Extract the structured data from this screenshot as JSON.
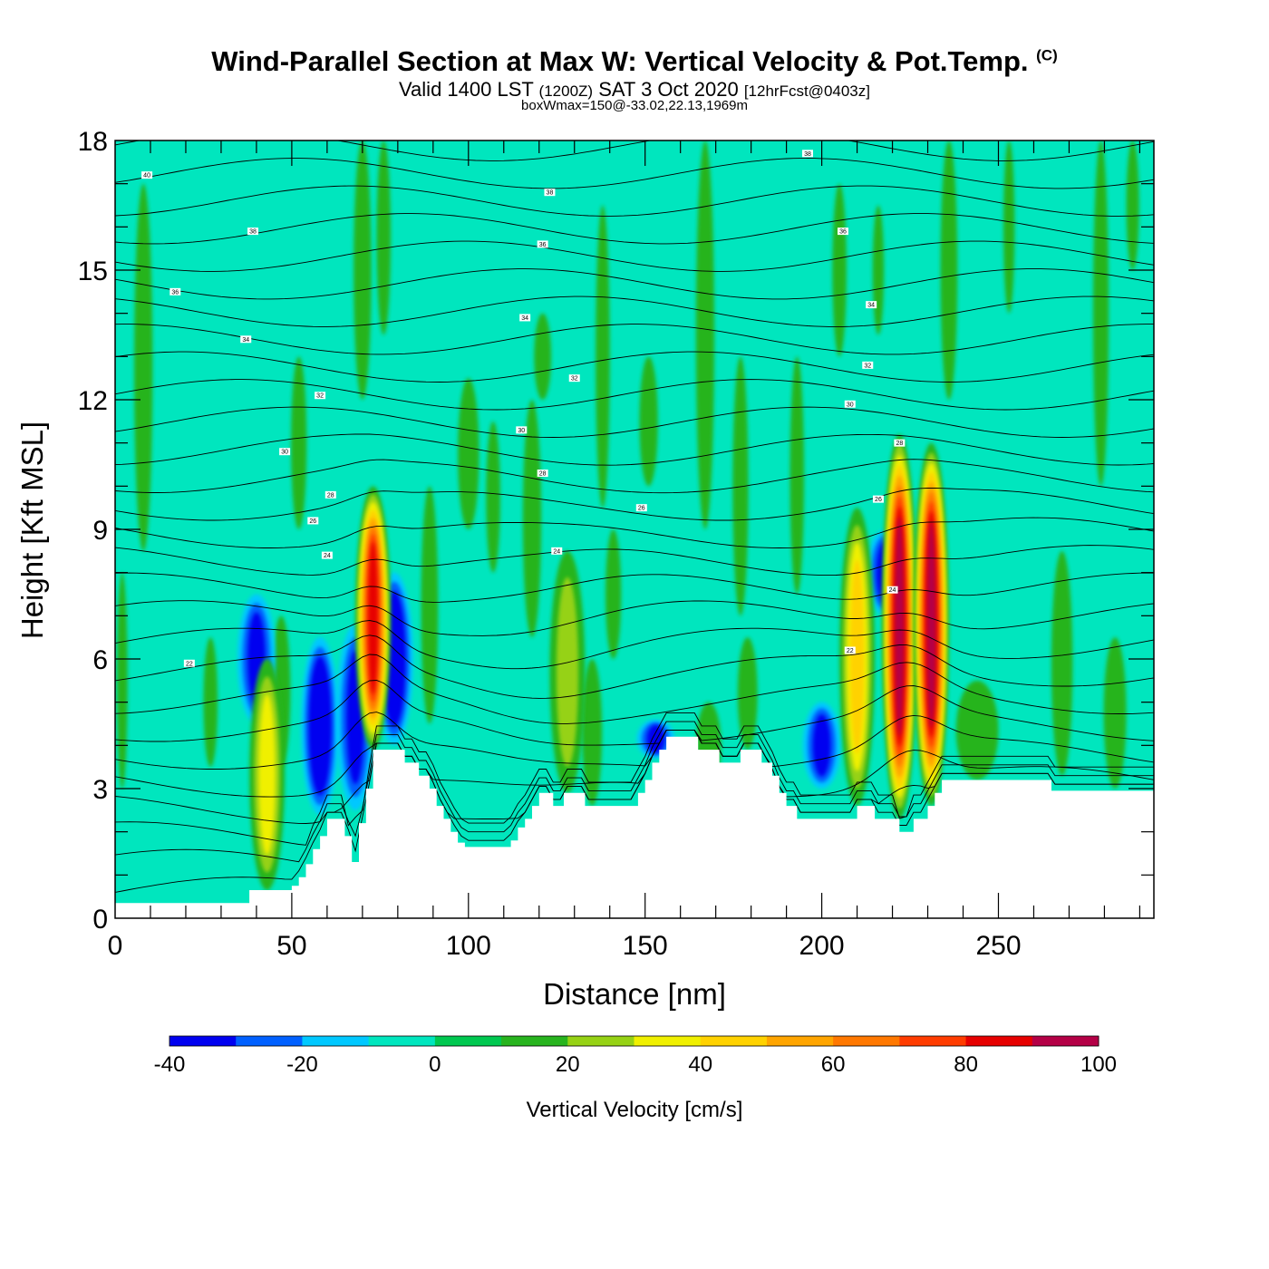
{
  "header": {
    "title": "Wind-Parallel Section at Max W: Vertical Velocity & Pot.Temp.",
    "copyright": "(C)",
    "valid_main": "Valid 1400 LST",
    "valid_zulu": "(1200Z)",
    "valid_date": "SAT 3 Oct 2020",
    "forecast": "[12hrFcst@0403z]",
    "box_info": "boxWmax=150@-33.02,22.13,1969m"
  },
  "chart_data": {
    "type": "heatmap",
    "xlabel": "Distance [nm]",
    "ylabel": "Height [Kft MSL]",
    "xlim": [
      0,
      294
    ],
    "ylim": [
      0,
      18
    ],
    "x_ticks": [
      0,
      50,
      100,
      150,
      200,
      250
    ],
    "y_ticks": [
      0,
      3,
      6,
      9,
      12,
      15,
      18
    ],
    "colorbar": {
      "label": "Vertical Velocity [cm/s]",
      "bounds": [
        -40,
        -30,
        -20,
        -10,
        0,
        10,
        20,
        30,
        40,
        50,
        60,
        70,
        80,
        90,
        100
      ],
      "colors": [
        "#0000f0",
        "#0060ff",
        "#00c8ff",
        "#00e6be",
        "#00c850",
        "#28b41e",
        "#96d214",
        "#f0f000",
        "#ffd200",
        "#ffa500",
        "#ff7800",
        "#ff3c00",
        "#e60000",
        "#b40046"
      ],
      "tick_labels": [
        "-40",
        "-20",
        "0",
        "20",
        "40",
        "60",
        "80",
        "100"
      ]
    },
    "terrain_kft": [
      [
        0,
        0.35
      ],
      [
        38,
        0.35
      ],
      [
        38,
        0.65
      ],
      [
        50,
        0.65
      ],
      [
        50,
        0.75
      ],
      [
        52,
        0.75
      ],
      [
        52,
        0.95
      ],
      [
        54,
        0.95
      ],
      [
        54,
        1.25
      ],
      [
        56,
        1.25
      ],
      [
        56,
        1.6
      ],
      [
        58,
        1.6
      ],
      [
        58,
        1.9
      ],
      [
        60,
        1.9
      ],
      [
        60,
        2.3
      ],
      [
        65,
        2.3
      ],
      [
        65,
        1.9
      ],
      [
        67,
        1.9
      ],
      [
        67,
        1.3
      ],
      [
        69,
        1.3
      ],
      [
        69,
        2.2
      ],
      [
        71,
        2.2
      ],
      [
        71,
        3.0
      ],
      [
        73,
        3.0
      ],
      [
        73,
        3.9
      ],
      [
        82,
        3.9
      ],
      [
        82,
        3.6
      ],
      [
        86,
        3.6
      ],
      [
        86,
        3.3
      ],
      [
        89,
        3.3
      ],
      [
        89,
        3.0
      ],
      [
        91,
        3.0
      ],
      [
        91,
        2.6
      ],
      [
        93,
        2.6
      ],
      [
        93,
        2.3
      ],
      [
        95,
        2.3
      ],
      [
        95,
        2.0
      ],
      [
        97,
        2.0
      ],
      [
        97,
        1.75
      ],
      [
        99,
        1.75
      ],
      [
        99,
        1.65
      ],
      [
        112,
        1.65
      ],
      [
        112,
        1.8
      ],
      [
        114,
        1.8
      ],
      [
        114,
        2.1
      ],
      [
        116,
        2.1
      ],
      [
        116,
        2.3
      ],
      [
        118,
        2.3
      ],
      [
        118,
        2.6
      ],
      [
        120,
        2.6
      ],
      [
        120,
        2.9
      ],
      [
        124,
        2.9
      ],
      [
        124,
        2.6
      ],
      [
        127,
        2.6
      ],
      [
        127,
        2.9
      ],
      [
        133,
        2.9
      ],
      [
        133,
        2.6
      ],
      [
        148,
        2.6
      ],
      [
        148,
        2.9
      ],
      [
        150,
        2.9
      ],
      [
        150,
        3.2
      ],
      [
        152,
        3.2
      ],
      [
        152,
        3.6
      ],
      [
        154,
        3.6
      ],
      [
        154,
        3.9
      ],
      [
        156,
        3.9
      ],
      [
        156,
        4.2
      ],
      [
        165,
        4.2
      ],
      [
        165,
        3.9
      ],
      [
        171,
        3.9
      ],
      [
        171,
        3.6
      ],
      [
        177,
        3.6
      ],
      [
        177,
        3.9
      ],
      [
        183,
        3.9
      ],
      [
        183,
        3.6
      ],
      [
        186,
        3.6
      ],
      [
        186,
        3.3
      ],
      [
        188,
        3.3
      ],
      [
        188,
        2.9
      ],
      [
        190,
        2.9
      ],
      [
        190,
        2.6
      ],
      [
        193,
        2.6
      ],
      [
        193,
        2.3
      ],
      [
        210,
        2.3
      ],
      [
        210,
        2.6
      ],
      [
        215,
        2.6
      ],
      [
        215,
        2.3
      ],
      [
        222,
        2.3
      ],
      [
        222,
        2.0
      ],
      [
        226,
        2.0
      ],
      [
        226,
        2.3
      ],
      [
        230,
        2.3
      ],
      [
        230,
        2.6
      ],
      [
        232,
        2.6
      ],
      [
        232,
        2.9
      ],
      [
        234,
        2.9
      ],
      [
        234,
        3.2
      ],
      [
        265,
        3.2
      ],
      [
        265,
        2.95
      ],
      [
        294,
        2.95
      ]
    ],
    "updrafts": [
      {
        "x": 73,
        "z_bottom": 3.9,
        "z_top": 10.0,
        "w_max": 80
      },
      {
        "x": 210,
        "z_bottom": 2.6,
        "z_top": 9.5,
        "w_max": 40
      },
      {
        "x": 222,
        "z_bottom": 2.3,
        "z_top": 11.2,
        "w_max": 90
      },
      {
        "x": 231,
        "z_bottom": 2.6,
        "z_top": 11.0,
        "w_max": 90
      },
      {
        "x": 43,
        "z_bottom": 0.65,
        "z_top": 6.0,
        "w_max": 30
      },
      {
        "x": 128,
        "z_bottom": 2.9,
        "z_top": 8.5,
        "w_max": 20
      }
    ],
    "downdrafts": [
      {
        "x": 79,
        "z_bottom": 4.0,
        "z_top": 8.0,
        "w_min": -40
      },
      {
        "x": 58,
        "z_bottom": 2.4,
        "z_top": 6.5,
        "w_min": -40
      },
      {
        "x": 40,
        "z_bottom": 4.5,
        "z_top": 7.5,
        "w_min": -30
      },
      {
        "x": 218,
        "z_bottom": 7.0,
        "z_top": 9.0,
        "w_min": -30
      },
      {
        "x": 68,
        "z_bottom": 2.5,
        "z_top": 6.8,
        "w_min": -30
      },
      {
        "x": 153,
        "z_bottom": 3.7,
        "z_top": 4.6,
        "w_min": -30
      },
      {
        "x": 200,
        "z_bottom": 3.0,
        "z_top": 5.0,
        "w_min": -30
      }
    ],
    "isentrope_labels": [
      {
        "x": 9,
        "z": 17.2,
        "text": "40"
      },
      {
        "x": 39,
        "z": 15.9,
        "text": "38"
      },
      {
        "x": 17,
        "z": 14.5,
        "text": "36"
      },
      {
        "x": 37,
        "z": 13.4,
        "text": "34"
      },
      {
        "x": 58,
        "z": 12.1,
        "text": "32"
      },
      {
        "x": 48,
        "z": 10.8,
        "text": "30"
      },
      {
        "x": 61,
        "z": 9.8,
        "text": "28"
      },
      {
        "x": 56,
        "z": 9.2,
        "text": "26"
      },
      {
        "x": 60,
        "z": 8.4,
        "text": "24"
      },
      {
        "x": 21,
        "z": 5.9,
        "text": "22"
      },
      {
        "x": 123,
        "z": 16.8,
        "text": "38"
      },
      {
        "x": 121,
        "z": 15.6,
        "text": "36"
      },
      {
        "x": 116,
        "z": 13.9,
        "text": "34"
      },
      {
        "x": 130,
        "z": 12.5,
        "text": "32"
      },
      {
        "x": 115,
        "z": 11.3,
        "text": "30"
      },
      {
        "x": 121,
        "z": 10.3,
        "text": "28"
      },
      {
        "x": 149,
        "z": 9.5,
        "text": "26"
      },
      {
        "x": 125,
        "z": 8.5,
        "text": "24"
      },
      {
        "x": 196,
        "z": 17.7,
        "text": "38"
      },
      {
        "x": 206,
        "z": 15.9,
        "text": "36"
      },
      {
        "x": 214,
        "z": 14.2,
        "text": "34"
      },
      {
        "x": 213,
        "z": 12.8,
        "text": "32"
      },
      {
        "x": 208,
        "z": 11.9,
        "text": "30"
      },
      {
        "x": 222,
        "z": 11.0,
        "text": "28"
      },
      {
        "x": 216,
        "z": 9.7,
        "text": "26"
      },
      {
        "x": 220,
        "z": 7.6,
        "text": "24"
      },
      {
        "x": 208,
        "z": 6.2,
        "text": "22"
      }
    ]
  }
}
